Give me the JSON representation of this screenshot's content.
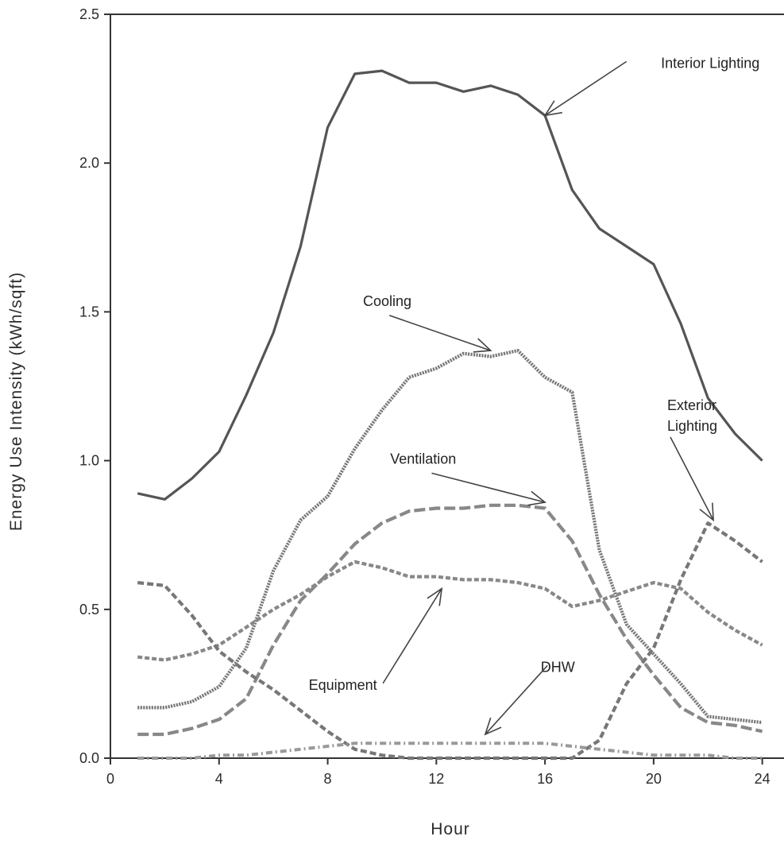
{
  "chart_data": {
    "type": "line",
    "title": "",
    "xlabel": "Hour",
    "ylabel": "Energy Use Intensity (kWh/sqft)",
    "xlim": [
      0,
      24.8
    ],
    "ylim": [
      0,
      2.5
    ],
    "xticks": [
      0,
      4,
      8,
      12,
      16,
      20,
      24
    ],
    "yticks": [
      0.0,
      0.5,
      1.0,
      1.5,
      2.0,
      2.5
    ],
    "xtick_labels": [
      "0",
      "4",
      "8",
      "12",
      "16",
      "20",
      "24"
    ],
    "ytick_labels": [
      "0.0",
      "0.5",
      "1.0",
      "1.5",
      "2.0",
      "2.5"
    ],
    "grid": false,
    "x": [
      1,
      2,
      3,
      4,
      5,
      6,
      7,
      8,
      9,
      10,
      11,
      12,
      13,
      14,
      15,
      16,
      17,
      18,
      19,
      20,
      21,
      22,
      23,
      24
    ],
    "series": [
      {
        "name": "Interior Lighting",
        "style": "solid",
        "values": [
          0.89,
          0.87,
          0.94,
          1.03,
          1.22,
          1.43,
          1.72,
          2.12,
          2.3,
          2.31,
          2.27,
          2.27,
          2.24,
          2.26,
          2.23,
          2.16,
          1.91,
          1.78,
          1.72,
          1.66,
          1.46,
          1.21,
          1.09,
          1.0
        ]
      },
      {
        "name": "Cooling",
        "style": "dotted",
        "values": [
          0.17,
          0.17,
          0.19,
          0.24,
          0.37,
          0.63,
          0.8,
          0.88,
          1.04,
          1.17,
          1.28,
          1.31,
          1.36,
          1.35,
          1.37,
          1.28,
          1.23,
          0.7,
          0.45,
          0.35,
          0.25,
          0.14,
          0.13,
          0.12
        ]
      },
      {
        "name": "Ventilation",
        "style": "long-dash",
        "values": [
          0.08,
          0.08,
          0.1,
          0.13,
          0.2,
          0.38,
          0.53,
          0.62,
          0.72,
          0.79,
          0.83,
          0.84,
          0.84,
          0.85,
          0.85,
          0.84,
          0.73,
          0.55,
          0.4,
          0.28,
          0.17,
          0.12,
          0.11,
          0.09
        ]
      },
      {
        "name": "Equipment",
        "style": "short-dash",
        "values": [
          0.34,
          0.33,
          0.35,
          0.38,
          0.44,
          0.5,
          0.55,
          0.61,
          0.66,
          0.64,
          0.61,
          0.61,
          0.6,
          0.6,
          0.59,
          0.57,
          0.51,
          0.53,
          0.56,
          0.59,
          0.57,
          0.49,
          0.43,
          0.38
        ]
      },
      {
        "name": "Exterior Lighting",
        "style": "dash",
        "values": [
          0.59,
          0.58,
          0.48,
          0.36,
          0.29,
          0.23,
          0.16,
          0.09,
          0.03,
          0.01,
          0.0,
          0.0,
          0.0,
          0.0,
          0.0,
          0.0,
          0.0,
          0.06,
          0.25,
          0.37,
          0.6,
          0.79,
          0.73,
          0.66
        ]
      },
      {
        "name": "DHW",
        "style": "dash-dot",
        "values": [
          0.0,
          0.0,
          0.0,
          0.01,
          0.01,
          0.02,
          0.03,
          0.04,
          0.05,
          0.05,
          0.05,
          0.05,
          0.05,
          0.05,
          0.05,
          0.05,
          0.04,
          0.03,
          0.02,
          0.01,
          0.01,
          0.01,
          0.0,
          0.0
        ]
      }
    ],
    "annotations": [
      {
        "text": "Interior Lighting",
        "x": 23.9,
        "y": 2.32,
        "anchor": "end",
        "arrow_to": [
          16.0,
          2.16
        ]
      },
      {
        "text": "Cooling",
        "x": 9.3,
        "y": 1.52,
        "anchor": "start",
        "arrow_to": [
          14.0,
          1.37
        ]
      },
      {
        "text": "Ventilation",
        "x": 10.3,
        "y": 0.99,
        "anchor": "start",
        "arrow_to": [
          16.0,
          0.86
        ]
      },
      {
        "text": "Exterior",
        "x": 20.5,
        "y": 1.17,
        "anchor": "start",
        "arrow_to": [
          22.2,
          0.8
        ]
      },
      {
        "text": "Lighting",
        "x": 20.5,
        "y": 1.1,
        "anchor": "start"
      },
      {
        "text": "Equipment",
        "x": 7.3,
        "y": 0.23,
        "anchor": "start",
        "arrow_to": [
          12.2,
          0.57
        ]
      },
      {
        "text": "DHW",
        "x": 17.1,
        "y": 0.29,
        "anchor": "end",
        "arrow_to": [
          13.8,
          0.08
        ]
      }
    ]
  }
}
